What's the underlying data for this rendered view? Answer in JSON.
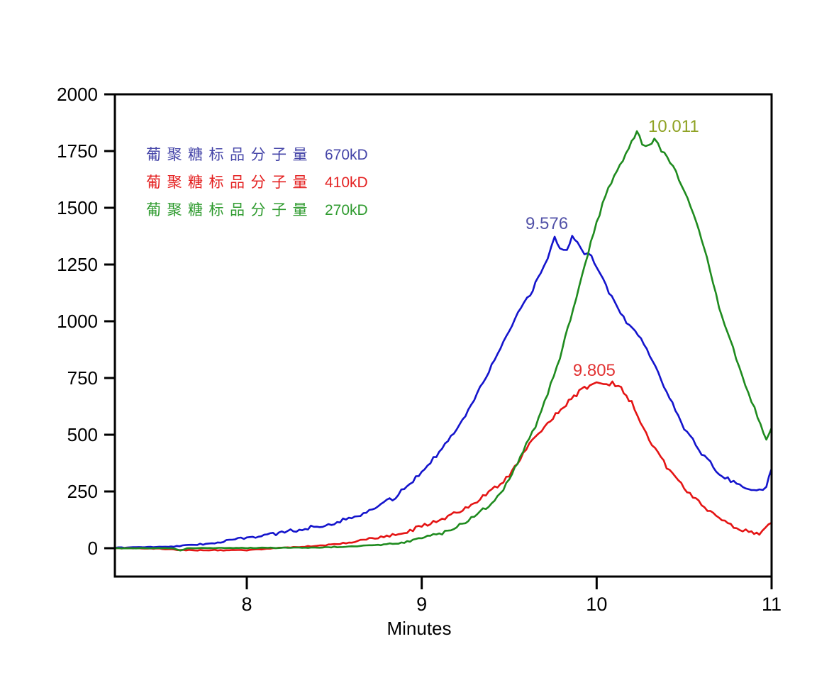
{
  "chart_data": {
    "type": "line",
    "title": "",
    "xlabel": "Minutes",
    "ylabel": "",
    "xlim": [
      7.246,
      11
    ],
    "ylim": [
      -125,
      2000
    ],
    "x_ticks": [
      8,
      9,
      10,
      11
    ],
    "y_ticks": [
      0,
      250,
      500,
      750,
      1000,
      1250,
      1500,
      1750,
      2000
    ],
    "grid": false,
    "legend_position": "top-left",
    "frame": "box",
    "noise_amplitude_units": 9,
    "legend": [
      {
        "label": "葡聚糖标品分子量",
        "value": "670kD",
        "color": "#4545a8"
      },
      {
        "label": "葡聚糖标品分子量",
        "value": "410kD",
        "color": "#e42222"
      },
      {
        "label": "葡聚糖标品分子量",
        "value": "270kD",
        "color": "#2f9b2f"
      }
    ],
    "peak_annotations": [
      {
        "text": "9.576",
        "time_min": 9.715,
        "value": 1406,
        "color": "#5252a8"
      },
      {
        "text": "9.805",
        "time_min": 9.986,
        "value": 759,
        "color": "#e23333"
      },
      {
        "text": "10.011",
        "time_min": 10.44,
        "value": 1834,
        "color": "#8fa224"
      }
    ],
    "series": [
      {
        "name": "670kD",
        "color": "#1414cc",
        "points": [
          [
            7.25,
            2
          ],
          [
            7.35,
            4
          ],
          [
            7.45,
            5
          ],
          [
            7.55,
            6
          ],
          [
            7.65,
            12
          ],
          [
            7.75,
            18
          ],
          [
            7.85,
            28
          ],
          [
            7.95,
            40
          ],
          [
            8.05,
            52
          ],
          [
            8.15,
            62
          ],
          [
            8.25,
            75
          ],
          [
            8.35,
            90
          ],
          [
            8.45,
            105
          ],
          [
            8.55,
            122
          ],
          [
            8.65,
            150
          ],
          [
            8.75,
            185
          ],
          [
            8.85,
            225
          ],
          [
            8.95,
            300
          ],
          [
            9.05,
            380
          ],
          [
            9.15,
            470
          ],
          [
            9.25,
            590
          ],
          [
            9.35,
            730
          ],
          [
            9.45,
            880
          ],
          [
            9.55,
            1030
          ],
          [
            9.62,
            1120
          ],
          [
            9.68,
            1210
          ],
          [
            9.72,
            1280
          ],
          [
            9.76,
            1370
          ],
          [
            9.79,
            1325
          ],
          [
            9.83,
            1315
          ],
          [
            9.86,
            1375
          ],
          [
            9.89,
            1345
          ],
          [
            9.93,
            1300
          ],
          [
            9.97,
            1285
          ],
          [
            10.02,
            1215
          ],
          [
            10.07,
            1130
          ],
          [
            10.12,
            1060
          ],
          [
            10.17,
            1000
          ],
          [
            10.22,
            955
          ],
          [
            10.27,
            905
          ],
          [
            10.32,
            830
          ],
          [
            10.4,
            690
          ],
          [
            10.5,
            530
          ],
          [
            10.6,
            420
          ],
          [
            10.7,
            330
          ],
          [
            10.8,
            285
          ],
          [
            10.87,
            262
          ],
          [
            10.93,
            255
          ],
          [
            10.97,
            270
          ],
          [
            11.0,
            350
          ]
        ]
      },
      {
        "name": "410kD",
        "color": "#e41414",
        "points": [
          [
            7.25,
            0
          ],
          [
            7.5,
            -2
          ],
          [
            7.62,
            -8
          ],
          [
            7.8,
            -9
          ],
          [
            8.0,
            -8
          ],
          [
            8.1,
            -4
          ],
          [
            8.2,
            2
          ],
          [
            8.3,
            6
          ],
          [
            8.4,
            10
          ],
          [
            8.5,
            16
          ],
          [
            8.6,
            26
          ],
          [
            8.7,
            40
          ],
          [
            8.8,
            54
          ],
          [
            8.9,
            70
          ],
          [
            9.0,
            95
          ],
          [
            9.1,
            124
          ],
          [
            9.2,
            158
          ],
          [
            9.3,
            200
          ],
          [
            9.4,
            252
          ],
          [
            9.5,
            320
          ],
          [
            9.58,
            420
          ],
          [
            9.65,
            490
          ],
          [
            9.72,
            555
          ],
          [
            9.78,
            600
          ],
          [
            9.84,
            645
          ],
          [
            9.9,
            688
          ],
          [
            9.96,
            718
          ],
          [
            10.0,
            730
          ],
          [
            10.04,
            715
          ],
          [
            10.09,
            728
          ],
          [
            10.14,
            705
          ],
          [
            10.2,
            640
          ],
          [
            10.3,
            480
          ],
          [
            10.4,
            360
          ],
          [
            10.5,
            265
          ],
          [
            10.6,
            190
          ],
          [
            10.7,
            132
          ],
          [
            10.8,
            92
          ],
          [
            10.87,
            68
          ],
          [
            10.93,
            65
          ],
          [
            11.0,
            112
          ]
        ]
      },
      {
        "name": "270kD",
        "color": "#1f8b1f",
        "points": [
          [
            7.25,
            0
          ],
          [
            7.58,
            0
          ],
          [
            7.62,
            -10
          ],
          [
            7.66,
            0
          ],
          [
            8.3,
            2
          ],
          [
            8.45,
            4
          ],
          [
            8.6,
            8
          ],
          [
            8.75,
            14
          ],
          [
            8.9,
            26
          ],
          [
            9.0,
            42
          ],
          [
            9.1,
            64
          ],
          [
            9.2,
            95
          ],
          [
            9.3,
            138
          ],
          [
            9.4,
            200
          ],
          [
            9.5,
            295
          ],
          [
            9.58,
            430
          ],
          [
            9.65,
            540
          ],
          [
            9.72,
            680
          ],
          [
            9.79,
            840
          ],
          [
            9.85,
            1010
          ],
          [
            9.9,
            1150
          ],
          [
            9.95,
            1300
          ],
          [
            10.0,
            1430
          ],
          [
            10.05,
            1555
          ],
          [
            10.1,
            1645
          ],
          [
            10.15,
            1705
          ],
          [
            10.2,
            1790
          ],
          [
            10.23,
            1843
          ],
          [
            10.26,
            1780
          ],
          [
            10.3,
            1770
          ],
          [
            10.33,
            1805
          ],
          [
            10.37,
            1755
          ],
          [
            10.42,
            1700
          ],
          [
            10.47,
            1630
          ],
          [
            10.52,
            1540
          ],
          [
            10.57,
            1430
          ],
          [
            10.63,
            1280
          ],
          [
            10.7,
            1060
          ],
          [
            10.78,
            880
          ],
          [
            10.85,
            720
          ],
          [
            10.92,
            580
          ],
          [
            10.97,
            480
          ],
          [
            11.0,
            530
          ]
        ]
      }
    ]
  }
}
